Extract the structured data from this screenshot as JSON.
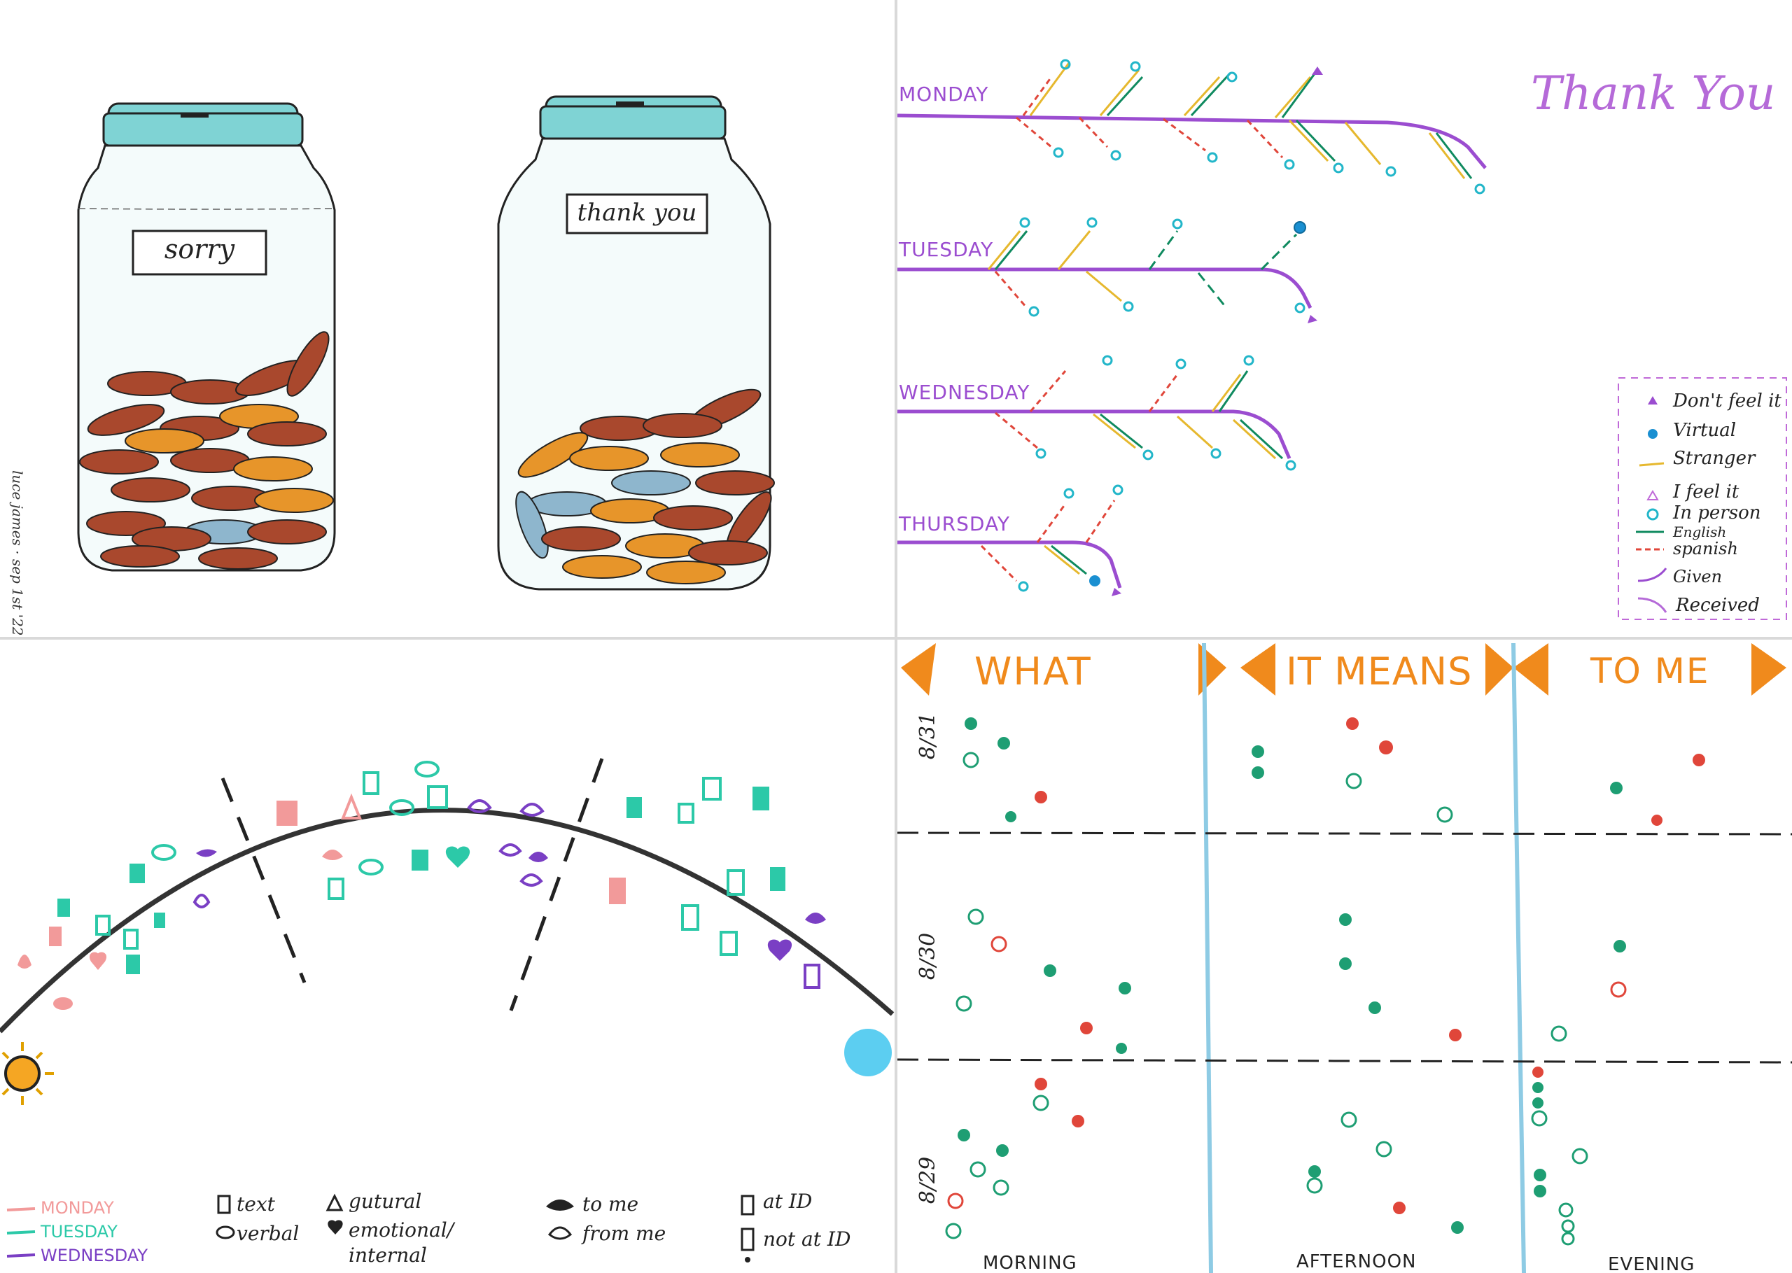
{
  "jars": {
    "sorry_label": "sorry",
    "thank_label": "thank you",
    "signature": "luce james · sep 1st '22"
  },
  "thankyou_chart": {
    "title": "Thank You",
    "days": [
      "MONDAY",
      "TUESDAY",
      "WEDNESDAY",
      "THURSDAY"
    ],
    "legend": [
      {
        "label": "Don't feel it",
        "mark": "filled-triangle",
        "color": "#9b4dd0"
      },
      {
        "label": "Virtual",
        "mark": "filled-circle",
        "color": "#1a8fd1"
      },
      {
        "label": "Stranger",
        "mark": "line",
        "color": "#e6b82e"
      },
      {
        "label": "I feel it",
        "mark": "hollow-triangle",
        "color": "#c06ad8"
      },
      {
        "label": "In person",
        "mark": "hollow-circle",
        "color": "#22b6c9"
      },
      {
        "label": "English",
        "mark": "line",
        "color": "#0f8a5f"
      },
      {
        "label": "spanish",
        "mark": "dashed-line",
        "color": "#e0463a"
      },
      {
        "label": "Given",
        "mark": "curve",
        "color": "#9b4dd0"
      },
      {
        "label": "Received",
        "mark": "curve",
        "color": "#b56ad8"
      }
    ]
  },
  "arc_chart": {
    "legend_days": [
      {
        "label": "MONDAY",
        "color": "#f29a9a"
      },
      {
        "label": "TUESDAY",
        "color": "#2cc9a8"
      },
      {
        "label": "WEDNESDAY",
        "color": "#7a3fc4"
      }
    ],
    "legend_symbols": [
      {
        "label": "text",
        "icon": "rect-icon"
      },
      {
        "label": "gutural",
        "icon": "triangle-icon"
      },
      {
        "label": "to me",
        "icon": "filled-drop-icon"
      },
      {
        "label": "at ID",
        "icon": "rect-icon"
      },
      {
        "label": "verbal",
        "icon": "oval-icon"
      },
      {
        "label": "emotional/ internal",
        "icon": "heart-icon"
      },
      {
        "label": "from me",
        "icon": "hollow-drop-icon"
      },
      {
        "label": "not at ID",
        "icon": "exclaim-rect-icon"
      }
    ]
  },
  "grid_chart": {
    "title_parts": [
      "WHAT",
      "IT MEANS",
      "TO ME"
    ],
    "dates": [
      "8/31",
      "8/30",
      "8/29"
    ],
    "times": [
      "MORNING",
      "AFTERNOON",
      "EVENING"
    ]
  }
}
